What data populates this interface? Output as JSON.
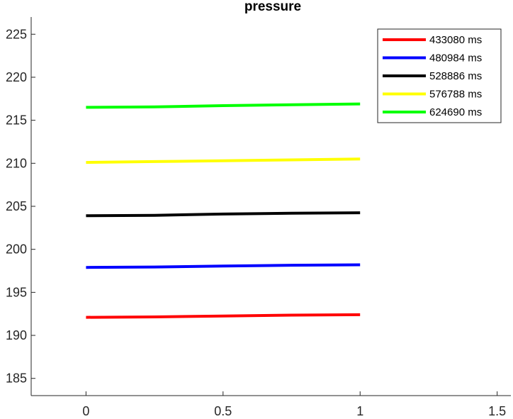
{
  "chart_data": {
    "type": "line",
    "title": "pressure",
    "xlabel": "",
    "ylabel": "",
    "xlim": [
      -0.2,
      1.55
    ],
    "ylim": [
      183,
      227
    ],
    "x_ticks": [
      0,
      0.5,
      1,
      1.5
    ],
    "x_tick_labels": [
      "0",
      "0.5",
      "1",
      "1.5"
    ],
    "y_ticks": [
      185,
      190,
      195,
      200,
      205,
      210,
      215,
      220,
      225
    ],
    "y_tick_labels": [
      "185",
      "190",
      "195",
      "200",
      "205",
      "210",
      "215",
      "220",
      "225"
    ],
    "grid": false,
    "legend_position": "top-right",
    "x": [
      0,
      0.25,
      0.5,
      0.75,
      1
    ],
    "series": [
      {
        "name": "433080 ms",
        "color": "#ff0000",
        "values": [
          192.1,
          192.15,
          192.25,
          192.35,
          192.4
        ]
      },
      {
        "name": "480984 ms",
        "color": "#0000ff",
        "values": [
          197.9,
          197.95,
          198.05,
          198.15,
          198.2
        ]
      },
      {
        "name": "528886 ms",
        "color": "#000000",
        "values": [
          203.9,
          203.95,
          204.1,
          204.2,
          204.25
        ]
      },
      {
        "name": "576788 ms",
        "color": "#ffff00",
        "values": [
          210.1,
          210.2,
          210.3,
          210.4,
          210.5
        ]
      },
      {
        "name": "624690 ms",
        "color": "#00ff00",
        "values": [
          216.5,
          216.55,
          216.7,
          216.8,
          216.9
        ]
      }
    ]
  }
}
